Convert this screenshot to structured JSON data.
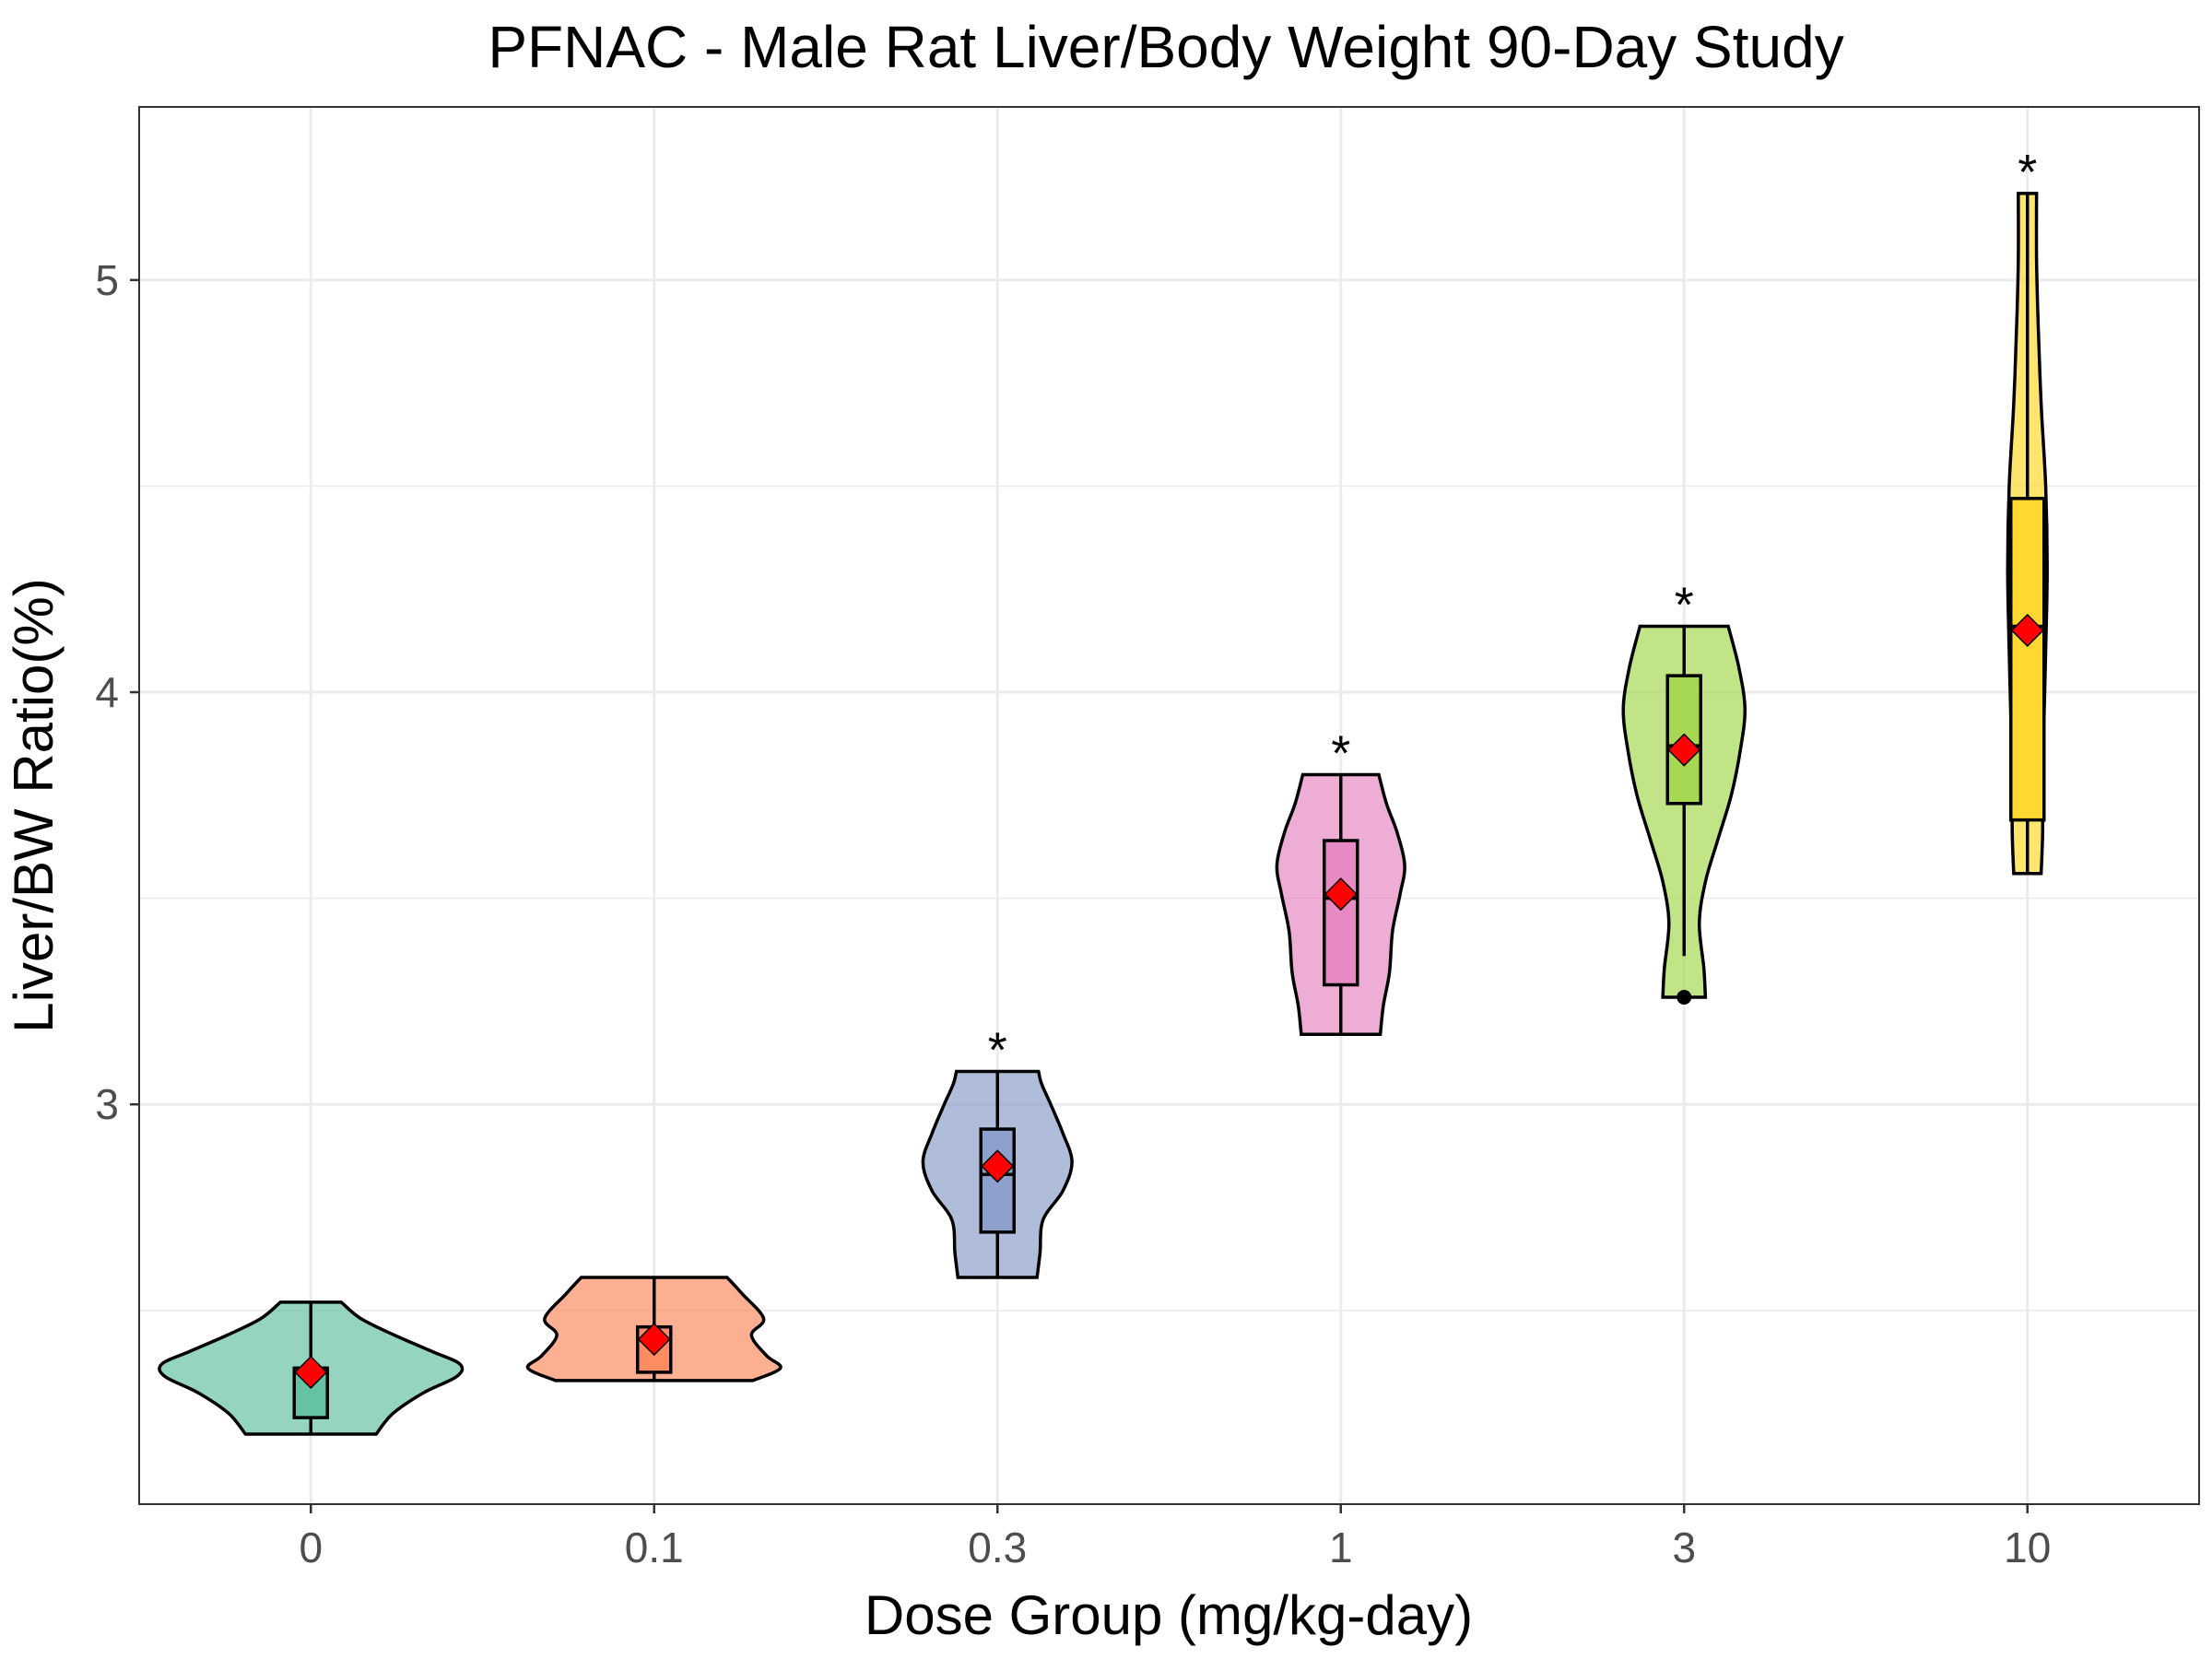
{
  "chart_data": {
    "type": "violin",
    "title": "PFNAC - Male Rat Liver/Body Weight 90-Day Study",
    "xlabel": "Dose Group (mg/kg-day)",
    "ylabel": "Liver/BW Ratio(%)",
    "ylim": [
      2.03,
      5.42
    ],
    "y_ticks": [
      3,
      4,
      5
    ],
    "y_tick_labels": [
      "3",
      "4",
      "5"
    ],
    "grid": true,
    "legend": "none",
    "categories": [
      "0",
      "0.1",
      "0.3",
      "1",
      "3",
      "10"
    ],
    "groups": [
      {
        "category": "0",
        "color": "#66c2a5",
        "min": 2.2,
        "max": 2.52,
        "q1": 2.24,
        "median": 2.36,
        "q3": 2.36,
        "mean": 2.35,
        "significant": false,
        "outliers": [],
        "density": [
          [
            2.2,
            0.43
          ],
          [
            2.25,
            0.54
          ],
          [
            2.3,
            0.74
          ],
          [
            2.34,
            0.96
          ],
          [
            2.37,
            0.98
          ],
          [
            2.4,
            0.8
          ],
          [
            2.44,
            0.55
          ],
          [
            2.48,
            0.33
          ],
          [
            2.52,
            0.2
          ]
        ]
      },
      {
        "category": "0.1",
        "color": "#fc8d62",
        "min": 2.33,
        "max": 2.58,
        "q1": 2.35,
        "median": 2.43,
        "q3": 2.46,
        "mean": 2.43,
        "significant": false,
        "outliers": [],
        "density": [
          [
            2.33,
            0.65
          ],
          [
            2.36,
            0.83
          ],
          [
            2.39,
            0.74
          ],
          [
            2.44,
            0.64
          ],
          [
            2.48,
            0.72
          ],
          [
            2.54,
            0.58
          ],
          [
            2.58,
            0.48
          ]
        ]
      },
      {
        "category": "0.3",
        "color": "#8da0cb",
        "min": 2.58,
        "max": 3.08,
        "q1": 2.69,
        "median": 2.83,
        "q3": 2.94,
        "mean": 2.85,
        "significant": true,
        "outliers": [],
        "density": [
          [
            2.58,
            0.26
          ],
          [
            2.64,
            0.28
          ],
          [
            2.72,
            0.3
          ],
          [
            2.79,
            0.43
          ],
          [
            2.86,
            0.49
          ],
          [
            2.93,
            0.43
          ],
          [
            3.0,
            0.35
          ],
          [
            3.05,
            0.29
          ],
          [
            3.08,
            0.27
          ]
        ]
      },
      {
        "category": "1",
        "color": "#e78ac3",
        "min": 3.17,
        "max": 3.8,
        "q1": 3.29,
        "median": 3.5,
        "q3": 3.64,
        "mean": 3.51,
        "significant": true,
        "outliers": [],
        "density": [
          [
            3.17,
            0.26
          ],
          [
            3.24,
            0.28
          ],
          [
            3.32,
            0.32
          ],
          [
            3.42,
            0.34
          ],
          [
            3.51,
            0.39
          ],
          [
            3.58,
            0.42
          ],
          [
            3.66,
            0.37
          ],
          [
            3.73,
            0.3
          ],
          [
            3.8,
            0.25
          ]
        ]
      },
      {
        "category": "3",
        "color": "#a6d854",
        "min": 3.36,
        "max": 4.16,
        "q1": 3.73,
        "median": 3.87,
        "q3": 4.04,
        "mean": 3.86,
        "significant": true,
        "outliers": [
          3.26
        ],
        "density": [
          [
            3.26,
            0.14
          ],
          [
            3.33,
            0.13
          ],
          [
            3.44,
            0.1
          ],
          [
            3.54,
            0.14
          ],
          [
            3.64,
            0.22
          ],
          [
            3.75,
            0.31
          ],
          [
            3.86,
            0.37
          ],
          [
            3.96,
            0.4
          ],
          [
            4.06,
            0.36
          ],
          [
            4.16,
            0.29
          ]
        ]
      },
      {
        "category": "10",
        "color": "#ffd92f",
        "min": 3.56,
        "max": 5.21,
        "q1": 3.69,
        "median": 4.16,
        "q3": 4.47,
        "mean": 4.15,
        "significant": true,
        "outliers": [],
        "density": [
          [
            3.56,
            0.09
          ],
          [
            3.66,
            0.1
          ],
          [
            3.8,
            0.1
          ],
          [
            3.95,
            0.11
          ],
          [
            4.1,
            0.12
          ],
          [
            4.3,
            0.13
          ],
          [
            4.5,
            0.12
          ],
          [
            4.7,
            0.09
          ],
          [
            4.9,
            0.07
          ],
          [
            5.05,
            0.06
          ],
          [
            5.21,
            0.06
          ]
        ]
      }
    ],
    "significance_marker": "*"
  }
}
